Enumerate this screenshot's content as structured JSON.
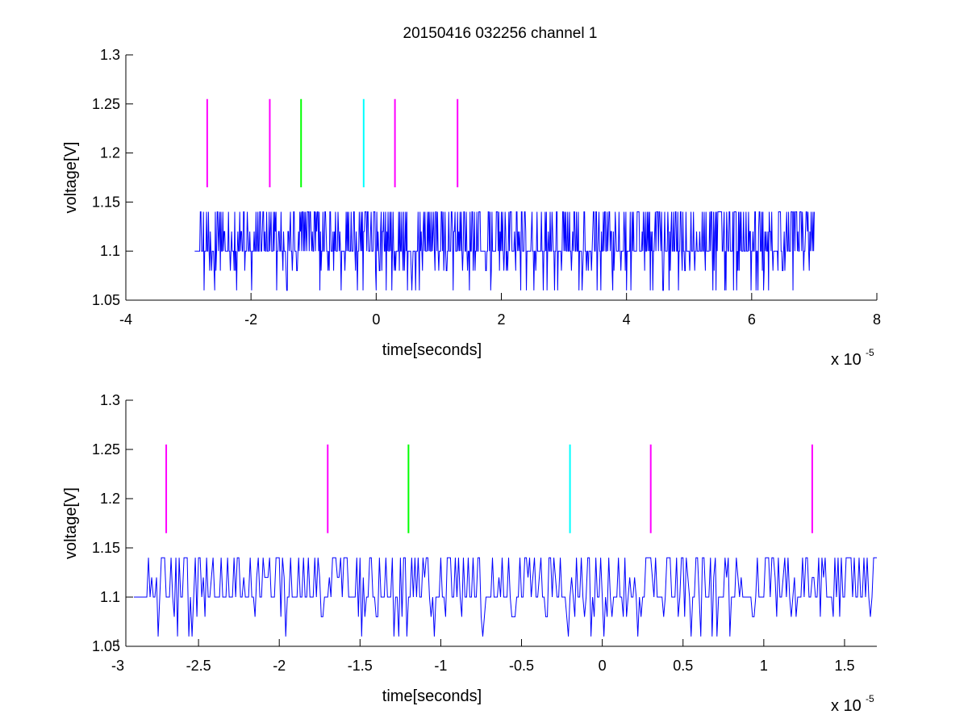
{
  "title": "20150416 032256 channel 1",
  "colors": {
    "signal": "#0000ff",
    "markers": {
      "magenta": "#ff00ff",
      "green": "#00ff00",
      "cyan": "#00ffff"
    },
    "axes": "#000000",
    "background": "#ffffff"
  },
  "chart_data": [
    {
      "type": "line",
      "title": "20150416 032256 channel 1",
      "xlabel": "time[seconds]",
      "ylabel": "voltage[V]",
      "x_multiplier_label": "x 10",
      "x_multiplier_exponent": "-5",
      "xlim": [
        -4e-05,
        8e-05
      ],
      "ylim": [
        1.05,
        1.3
      ],
      "xticks": [
        -4,
        -2,
        0,
        2,
        4,
        6,
        8
      ],
      "xtick_labels": [
        "-4",
        "-2",
        "0",
        "2",
        "4",
        "6",
        "8"
      ],
      "yticks": [
        1.05,
        1.1,
        1.15,
        1.2,
        1.25,
        1.3
      ],
      "ytick_labels": [
        "1.05",
        "1.1",
        "1.15",
        "1.2",
        "1.25",
        "1.3"
      ],
      "grid": false,
      "series": [
        {
          "kind": "quantized_noise_signal",
          "color": "#0000ff",
          "x_range": [
            -2.9e-05,
            7e-05
          ],
          "baseline": 1.1,
          "levels": [
            1.06,
            1.08,
            1.1,
            1.12,
            1.14
          ]
        }
      ],
      "markers": [
        {
          "x": -2.7e-05,
          "y_range": [
            1.165,
            1.255
          ],
          "color": "#ff00ff"
        },
        {
          "x": -1.7e-05,
          "y_range": [
            1.165,
            1.255
          ],
          "color": "#ff00ff"
        },
        {
          "x": -1.2e-05,
          "y_range": [
            1.165,
            1.255
          ],
          "color": "#00ff00"
        },
        {
          "x": -2e-06,
          "y_range": [
            1.165,
            1.255
          ],
          "color": "#00ffff"
        },
        {
          "x": 3e-06,
          "y_range": [
            1.165,
            1.255
          ],
          "color": "#ff00ff"
        },
        {
          "x": 1.3e-05,
          "y_range": [
            1.165,
            1.255
          ],
          "color": "#ff00ff"
        }
      ]
    },
    {
      "type": "line",
      "xlabel": "time[seconds]",
      "ylabel": "voltage[V]",
      "x_multiplier_label": "x 10",
      "x_multiplier_exponent": "-5",
      "xlim": [
        -2.95e-05,
        1.7e-05
      ],
      "ylim": [
        1.05,
        1.3
      ],
      "xticks": [
        -3,
        -2.5,
        -2,
        -1.5,
        -1,
        -0.5,
        0,
        0.5,
        1,
        1.5
      ],
      "xtick_labels": [
        "-3",
        "-2.5",
        "-2",
        "-1.5",
        "-1",
        "-0.5",
        "0",
        "0.5",
        "1",
        "1.5"
      ],
      "yticks": [
        1.05,
        1.1,
        1.15,
        1.2,
        1.25,
        1.3
      ],
      "ytick_labels": [
        "1.05",
        "1.1",
        "1.15",
        "1.2",
        "1.25",
        "1.3"
      ],
      "grid": false,
      "series": [
        {
          "kind": "quantized_noise_signal",
          "color": "#0000ff",
          "x_range": [
            -2.9e-05,
            1.7e-05
          ],
          "baseline": 1.1,
          "levels": [
            1.06,
            1.08,
            1.1,
            1.12,
            1.14
          ]
        }
      ],
      "markers": [
        {
          "x": -2.7e-05,
          "y_range": [
            1.165,
            1.255
          ],
          "color": "#ff00ff"
        },
        {
          "x": -1.7e-05,
          "y_range": [
            1.165,
            1.255
          ],
          "color": "#ff00ff"
        },
        {
          "x": -1.2e-05,
          "y_range": [
            1.165,
            1.255
          ],
          "color": "#00ff00"
        },
        {
          "x": -2e-06,
          "y_range": [
            1.165,
            1.255
          ],
          "color": "#00ffff"
        },
        {
          "x": 3e-06,
          "y_range": [
            1.165,
            1.255
          ],
          "color": "#ff00ff"
        },
        {
          "x": 1.3e-05,
          "y_range": [
            1.165,
            1.255
          ],
          "color": "#ff00ff"
        }
      ]
    }
  ]
}
